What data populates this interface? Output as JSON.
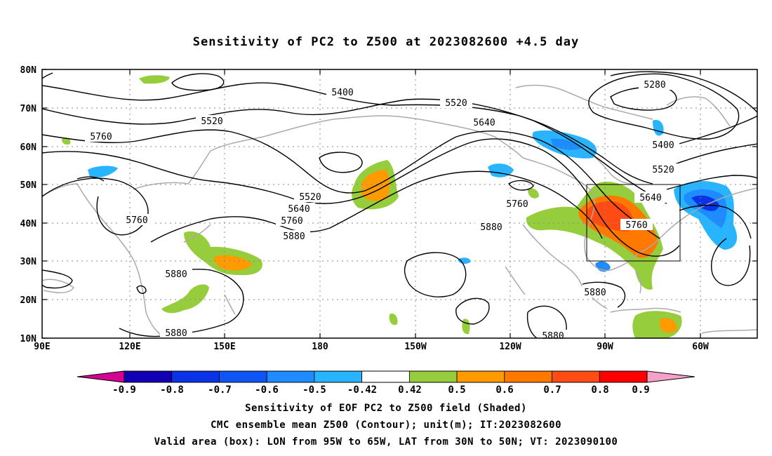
{
  "title": "Sensitivity of PC2 to Z500 at 2023082600 +4.5 day",
  "lat_labels": [
    "80N",
    "70N",
    "60N",
    "50N",
    "40N",
    "30N",
    "20N",
    "10N"
  ],
  "lon_labels": [
    "90E",
    "120E",
    "150E",
    "180",
    "150W",
    "120W",
    "90W",
    "60W"
  ],
  "contour_labels": [
    {
      "text": "5400"
    },
    {
      "text": "5520"
    },
    {
      "text": "5520"
    },
    {
      "text": "5640"
    },
    {
      "text": "5760"
    },
    {
      "text": "5760"
    },
    {
      "text": "5520"
    },
    {
      "text": "5640"
    },
    {
      "text": "5760"
    },
    {
      "text": "5880"
    },
    {
      "text": "5880"
    },
    {
      "text": "5880"
    },
    {
      "text": "5880"
    },
    {
      "text": "5760"
    },
    {
      "text": "5880"
    },
    {
      "text": "5880"
    },
    {
      "text": "5280"
    },
    {
      "text": "5400"
    },
    {
      "text": "5520"
    },
    {
      "text": "5640"
    },
    {
      "text": "5760"
    }
  ],
  "colorbar": {
    "labels": [
      "-0.9",
      "-0.8",
      "-0.7",
      "-0.6",
      "-0.5",
      "-0.42",
      "0.42",
      "0.5",
      "0.6",
      "0.7",
      "0.8",
      "0.9"
    ],
    "colors": [
      "#1200b5",
      "#0a32e6",
      "#0f55f5",
      "#1e8cff",
      "#28b4ff",
      "#ffffff",
      "#96cd3c",
      "#ff9b00",
      "#ff7800",
      "#ff4b14",
      "#ff0000"
    ],
    "low_end_color": "#d60093",
    "high_end_color": "#f5a0c8"
  },
  "captions": [
    "Sensitivity of EOF PC2 to Z500 field (Shaded)",
    "CMC ensemble mean Z500 (Contour); unit(m); IT:2023082600",
    "Valid area (box): LON from 95W to 65W, LAT from 30N to 50N; VT: 2023090100"
  ]
}
